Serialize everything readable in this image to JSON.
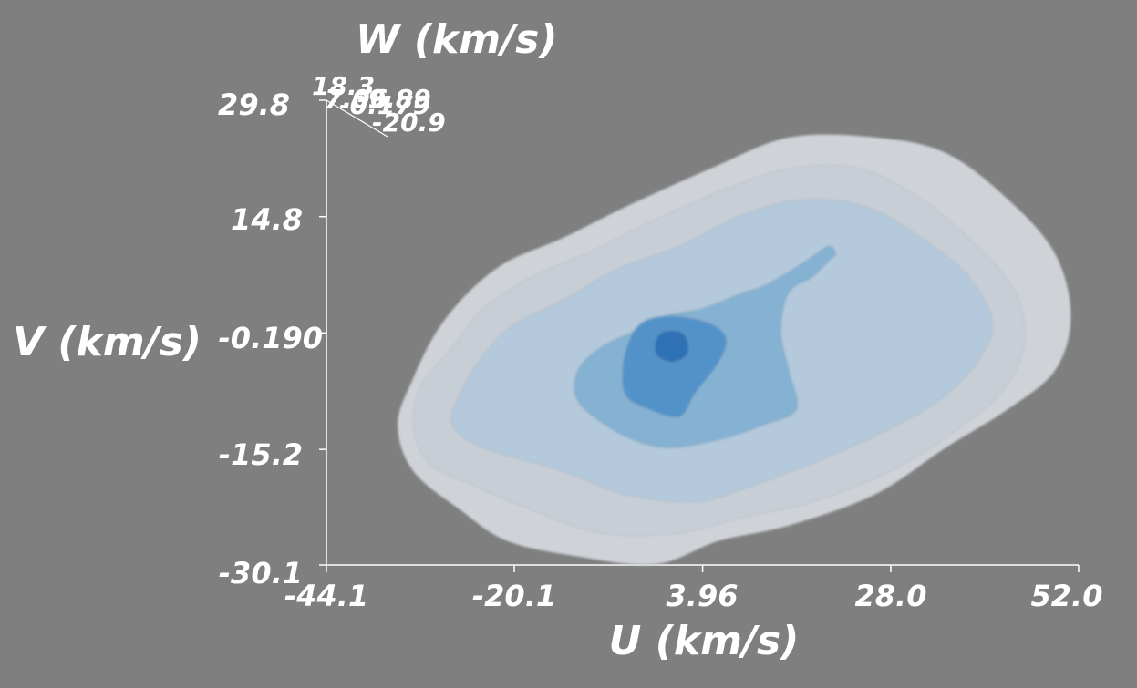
{
  "chart_data": {
    "type": "isosurface-3d",
    "xlabel": "U (km/s)",
    "ylabel": "V (km/s)",
    "zlabel": "W (km/s)",
    "x_ticks": [
      "-44.1",
      "-20.1",
      "3.96",
      "28.0",
      "52.0"
    ],
    "y_ticks": [
      "-30.1",
      "-15.2",
      "-0.190",
      "14.8",
      "29.8"
    ],
    "z_ticks": [
      "18.3",
      "7.06",
      "-0.179",
      "-9.89",
      "-20.9"
    ],
    "xlim": [
      -44.1,
      52.0
    ],
    "ylim": [
      -30.1,
      29.8
    ],
    "zlim": [
      -20.9,
      18.3
    ],
    "background_color": "#7f7f7f",
    "surface_colors": [
      "#d4d8dc",
      "#c7ced6",
      "#b1c9db",
      "#7faed0",
      "#4d8fc6",
      "#2a6fb2"
    ],
    "levels": [
      {
        "points": [
          [
            -21,
            -27
          ],
          [
            -12,
            -29
          ],
          [
            -2,
            -30
          ],
          [
            6,
            -27
          ],
          [
            15,
            -25
          ],
          [
            26,
            -21
          ],
          [
            35,
            -15
          ],
          [
            43,
            -10
          ],
          [
            49,
            -5
          ],
          [
            51,
            2
          ],
          [
            49,
            10
          ],
          [
            43,
            17
          ],
          [
            35,
            23
          ],
          [
            26,
            25
          ],
          [
            15,
            25
          ],
          [
            5,
            21
          ],
          [
            -6,
            16
          ],
          [
            -14,
            12
          ],
          [
            -21,
            9
          ],
          [
            -26,
            5
          ],
          [
            -30,
            0
          ],
          [
            -33,
            -6
          ],
          [
            -35,
            -12
          ],
          [
            -33,
            -18
          ],
          [
            -27,
            -23
          ]
        ]
      },
      {
        "points": [
          [
            -18,
            -23
          ],
          [
            -9,
            -26
          ],
          [
            1,
            -26
          ],
          [
            9,
            -24
          ],
          [
            18,
            -22
          ],
          [
            28,
            -18
          ],
          [
            36,
            -13
          ],
          [
            42,
            -8
          ],
          [
            45,
            -2
          ],
          [
            44,
            5
          ],
          [
            39,
            11
          ],
          [
            32,
            17
          ],
          [
            24,
            21
          ],
          [
            15,
            21
          ],
          [
            6,
            18
          ],
          [
            -3,
            14
          ],
          [
            -11,
            10
          ],
          [
            -18,
            7
          ],
          [
            -24,
            3
          ],
          [
            -28,
            -2
          ],
          [
            -32,
            -7
          ],
          [
            -33,
            -12
          ],
          [
            -31,
            -17
          ],
          [
            -25,
            -20
          ]
        ]
      },
      {
        "points": [
          [
            -14,
            -18
          ],
          [
            -6,
            -21
          ],
          [
            3,
            -22
          ],
          [
            10,
            -20
          ],
          [
            18,
            -17
          ],
          [
            27,
            -13
          ],
          [
            34,
            -9
          ],
          [
            39,
            -4
          ],
          [
            41,
            1
          ],
          [
            38,
            7
          ],
          [
            32,
            12
          ],
          [
            25,
            16
          ],
          [
            17,
            17
          ],
          [
            9,
            15
          ],
          [
            1,
            11
          ],
          [
            -7,
            8
          ],
          [
            -14,
            4
          ],
          [
            -20,
            1
          ],
          [
            -24,
            -3
          ],
          [
            -27,
            -8
          ],
          [
            -28,
            -12
          ],
          [
            -24,
            -15
          ]
        ]
      },
      {
        "points": [
          [
            -12,
            -9
          ],
          [
            -7,
            -13
          ],
          [
            -1,
            -15
          ],
          [
            6,
            -14
          ],
          [
            12,
            -12
          ],
          [
            16,
            -10
          ],
          [
            15,
            -5
          ],
          [
            14,
            0
          ],
          [
            15,
            5
          ],
          [
            18,
            7
          ],
          [
            20,
            9
          ],
          [
            21,
            10
          ],
          [
            20,
            11
          ],
          [
            17,
            9
          ],
          [
            12,
            6
          ],
          [
            9,
            5
          ],
          [
            4,
            3
          ],
          [
            -1,
            2
          ],
          [
            -5,
            0
          ],
          [
            -9,
            -2
          ],
          [
            -12,
            -5
          ]
        ]
      },
      {
        "points": [
          [
            -6,
            -8
          ],
          [
            -3,
            -10
          ],
          [
            1,
            -11
          ],
          [
            3,
            -8
          ],
          [
            6,
            -4
          ],
          [
            7,
            -1
          ],
          [
            5,
            1
          ],
          [
            0,
            2
          ],
          [
            -4,
            1
          ],
          [
            -6,
            -3
          ]
        ]
      },
      {
        "points": [
          [
            -2,
            -3
          ],
          [
            0,
            -4
          ],
          [
            2,
            -3
          ],
          [
            2,
            -1
          ],
          [
            1,
            0
          ],
          [
            -1,
            0
          ],
          [
            -2,
            -1
          ]
        ]
      }
    ]
  }
}
